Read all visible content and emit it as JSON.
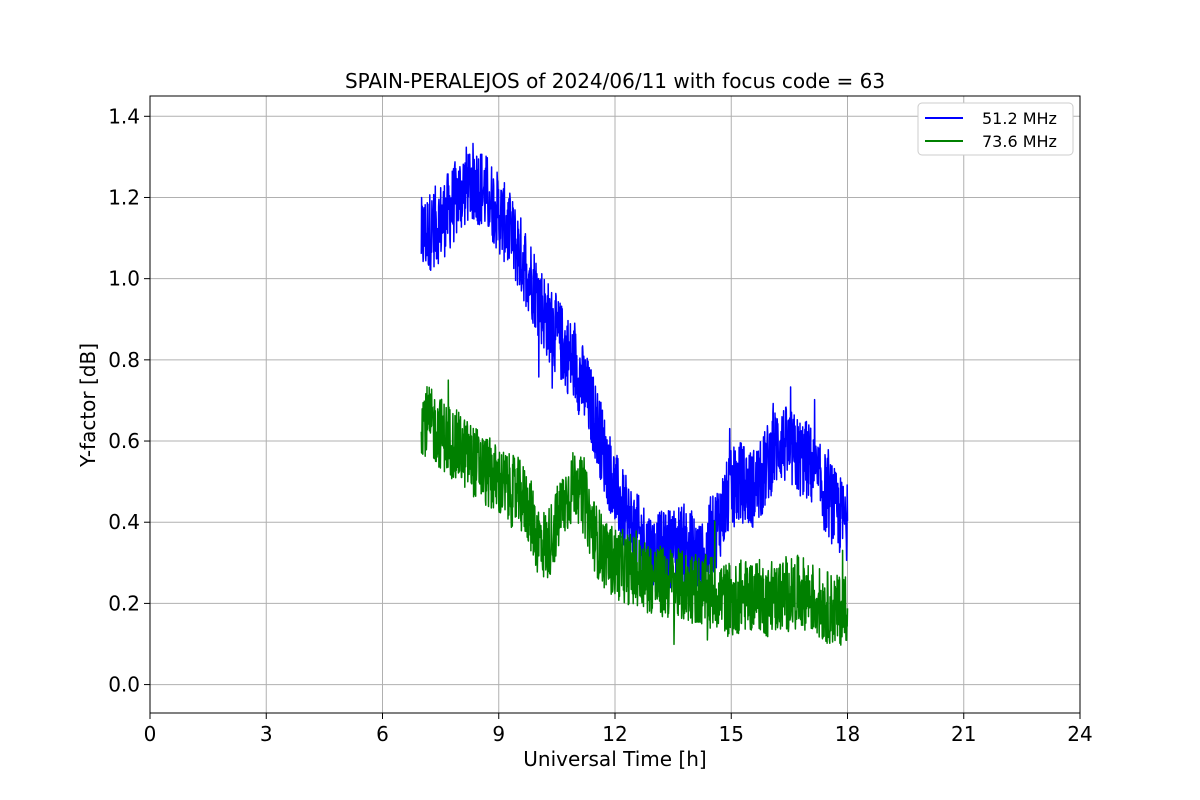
{
  "chart_data": {
    "type": "line",
    "title": "SPAIN-PERALEJOS of 2024/06/11 with focus code = 63",
    "xlabel": "Universal Time [h]",
    "ylabel": "Y-factor [dB]",
    "xlim": [
      0,
      24
    ],
    "ylim": [
      -0.07,
      1.45
    ],
    "xticks": [
      0,
      3,
      6,
      9,
      12,
      15,
      18,
      21,
      24
    ],
    "yticks": [
      0.0,
      0.2,
      0.4,
      0.6,
      0.8,
      1.0,
      1.2,
      1.4
    ],
    "xtick_labels": [
      "0",
      "3",
      "6",
      "9",
      "12",
      "15",
      "18",
      "21",
      "24"
    ],
    "ytick_labels": [
      "0.0",
      "0.2",
      "0.4",
      "0.6",
      "0.8",
      "1.0",
      "1.2",
      "1.4"
    ],
    "grid": true,
    "legend_position": "top-right",
    "series": [
      {
        "name": "51.2 MHz",
        "color": "#0000ff",
        "x": [
          7.0,
          7.25,
          7.5,
          7.75,
          8.0,
          8.25,
          8.5,
          8.75,
          9.0,
          9.25,
          9.5,
          9.75,
          10.0,
          10.25,
          10.5,
          10.75,
          11.0,
          11.25,
          11.5,
          11.75,
          12.0,
          12.25,
          12.5,
          12.75,
          13.0,
          13.25,
          13.5,
          13.75,
          14.0,
          14.25,
          14.5,
          14.75,
          15.0,
          15.25,
          15.5,
          15.75,
          16.0,
          16.25,
          16.5,
          16.75,
          17.0,
          17.25,
          17.5,
          17.75,
          18.0
        ],
        "y": [
          1.1,
          1.12,
          1.14,
          1.17,
          1.21,
          1.24,
          1.23,
          1.2,
          1.16,
          1.12,
          1.07,
          1.02,
          0.96,
          0.9,
          0.86,
          0.82,
          0.78,
          0.72,
          0.65,
          0.56,
          0.48,
          0.42,
          0.38,
          0.35,
          0.32,
          0.33,
          0.34,
          0.35,
          0.33,
          0.3,
          0.36,
          0.42,
          0.48,
          0.5,
          0.48,
          0.5,
          0.56,
          0.6,
          0.58,
          0.56,
          0.55,
          0.5,
          0.46,
          0.42,
          0.4
        ],
        "noise_amplitude": 0.1
      },
      {
        "name": "73.6 MHz",
        "color": "#008000",
        "x": [
          7.0,
          7.25,
          7.5,
          7.75,
          8.0,
          8.25,
          8.5,
          8.75,
          9.0,
          9.25,
          9.5,
          9.75,
          10.0,
          10.25,
          10.5,
          10.75,
          11.0,
          11.25,
          11.5,
          11.75,
          12.0,
          12.25,
          12.5,
          12.75,
          13.0,
          13.25,
          13.5,
          13.75,
          14.0,
          14.25,
          14.5,
          14.75,
          15.0,
          15.25,
          15.5,
          15.75,
          16.0,
          16.25,
          16.5,
          16.75,
          17.0,
          17.25,
          17.5,
          17.75,
          18.0
        ],
        "y": [
          0.66,
          0.64,
          0.62,
          0.6,
          0.58,
          0.56,
          0.54,
          0.52,
          0.5,
          0.48,
          0.47,
          0.44,
          0.36,
          0.34,
          0.4,
          0.46,
          0.5,
          0.44,
          0.36,
          0.32,
          0.3,
          0.29,
          0.28,
          0.27,
          0.26,
          0.25,
          0.25,
          0.24,
          0.24,
          0.23,
          0.23,
          0.22,
          0.2,
          0.22,
          0.22,
          0.22,
          0.2,
          0.22,
          0.22,
          0.23,
          0.22,
          0.2,
          0.19,
          0.18,
          0.2
        ],
        "noise_amplitude": 0.09
      }
    ]
  }
}
